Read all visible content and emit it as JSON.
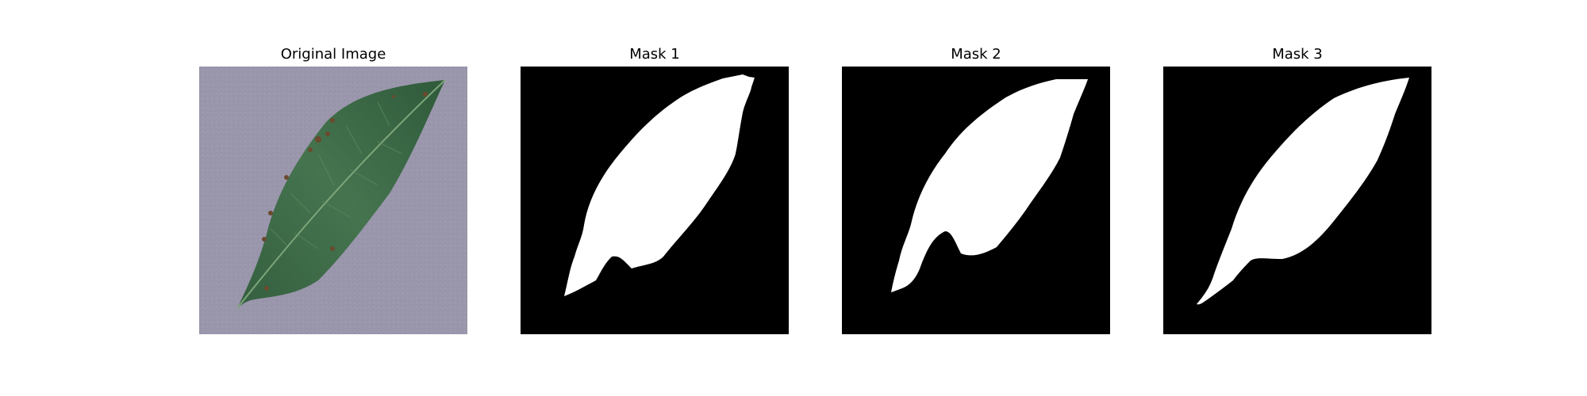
{
  "figure": {
    "panels": [
      {
        "title": "Original Image"
      },
      {
        "title": "Mask 1"
      },
      {
        "title": "Mask 2"
      },
      {
        "title": "Mask 3"
      }
    ]
  },
  "colors": {
    "background": "#9a96ac",
    "leaf": "#3f6e4a",
    "leaf_dark": "#2f5a3a",
    "vein": "#6f9a6a",
    "spot": "#6b4a2e",
    "mask_background": "#000000",
    "mask_foreground": "#ffffff"
  }
}
